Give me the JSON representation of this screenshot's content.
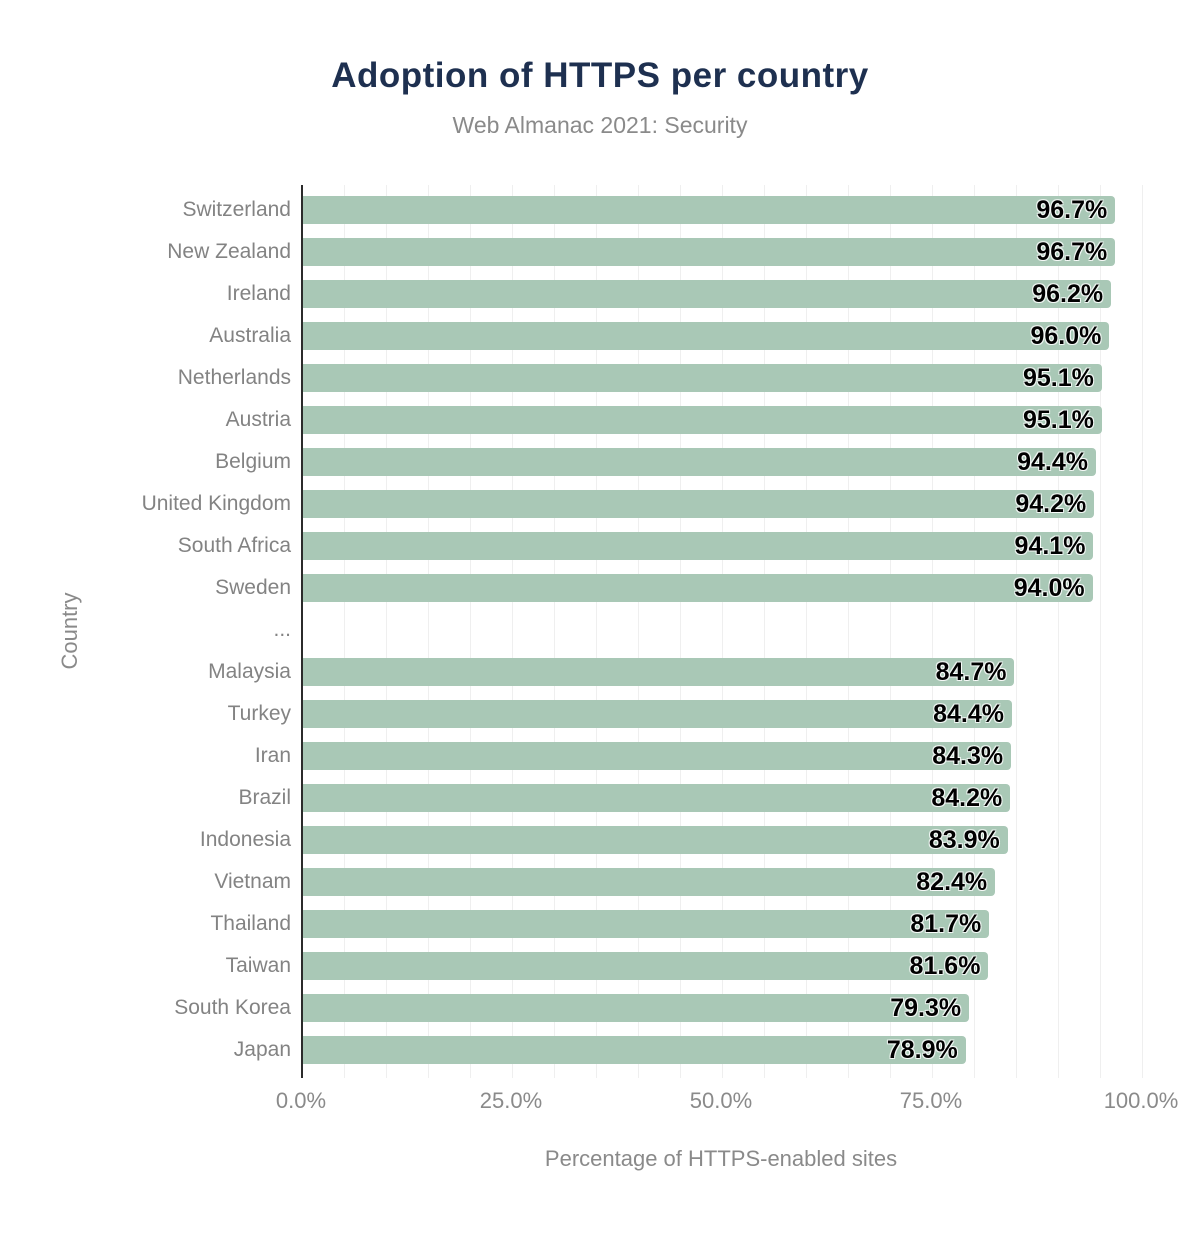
{
  "title": "Adoption of HTTPS per country",
  "subtitle": "Web Almanac 2021: Security",
  "chart_data": {
    "type": "bar",
    "orientation": "horizontal",
    "title": "Adoption of HTTPS per country",
    "subtitle": "Web Almanac 2021: Security",
    "xlabel": "Percentage of HTTPS-enabled sites",
    "ylabel": "Country",
    "xlim": [
      0,
      100
    ],
    "x_tick_labels": [
      "0.0%",
      "25.0%",
      "50.0%",
      "75.0%",
      "100.0%"
    ],
    "x_tick_values": [
      0,
      25,
      50,
      75,
      100
    ],
    "grid": "faint vertical minor gridlines every 5%",
    "legend": "none",
    "bar_color": "#a9c8b6",
    "title_color": "#1e3050",
    "axis_text_color": "#8a8a8a",
    "data_label_color": "#000000",
    "categories": [
      "Switzerland",
      "New Zealand",
      "Ireland",
      "Australia",
      "Netherlands",
      "Austria",
      "Belgium",
      "United Kingdom",
      "South Africa",
      "Sweden",
      "...",
      "Malaysia",
      "Turkey",
      "Iran",
      "Brazil",
      "Indonesia",
      "Vietnam",
      "Thailand",
      "Taiwan",
      "South Korea",
      "Japan"
    ],
    "values": [
      96.7,
      96.7,
      96.2,
      96.0,
      95.1,
      95.1,
      94.4,
      94.2,
      94.1,
      94.0,
      null,
      84.7,
      84.4,
      84.3,
      84.2,
      83.9,
      82.4,
      81.7,
      81.6,
      79.3,
      78.9
    ],
    "data_labels": [
      "96.7%",
      "96.7%",
      "96.2%",
      "96.0%",
      "95.1%",
      "95.1%",
      "94.4%",
      "94.2%",
      "94.1%",
      "94.0%",
      "",
      "84.7%",
      "84.4%",
      "84.3%",
      "84.2%",
      "83.9%",
      "82.4%",
      "81.7%",
      "81.6%",
      "79.3%",
      "78.9%"
    ]
  }
}
